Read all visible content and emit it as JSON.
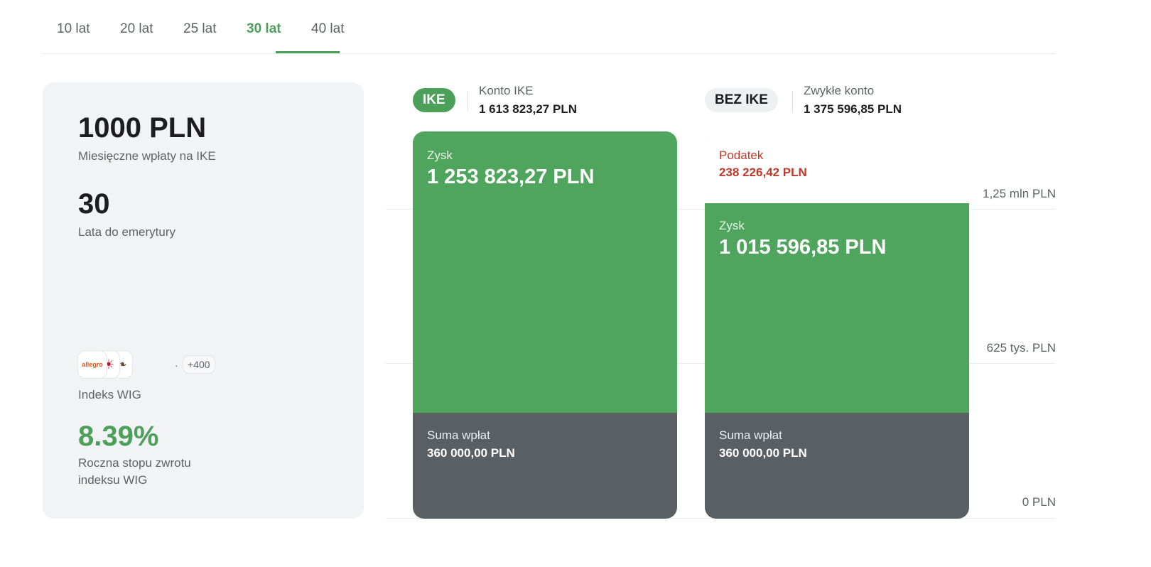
{
  "tabs": [
    {
      "label": "10 lat",
      "active": false
    },
    {
      "label": "20 lat",
      "active": false
    },
    {
      "label": "25 lat",
      "active": false
    },
    {
      "label": "30 lat",
      "active": true
    },
    {
      "label": "40 lat",
      "active": false
    }
  ],
  "summary": {
    "monthly_value": "1000 PLN",
    "monthly_label": "Miesięczne wpłaty na IKE",
    "years_value": "30",
    "years_label": "Lata do emerytury",
    "logos": [
      "allegro",
      "logo-2",
      "logo-3"
    ],
    "logos_more": "+400",
    "index_label": "Indeks WIG",
    "rate_value": "8.39%",
    "rate_label_line1": "Roczna stopu zwrotu",
    "rate_label_line2": "indeksu WIG"
  },
  "chart": {
    "axis_labels": {
      "top": "1,25 mln PLN",
      "mid": "625 tys. PLN",
      "bottom": "0 PLN"
    },
    "ike": {
      "pill": "IKE",
      "name": "Konto IKE",
      "total": "1 613 823,27 PLN",
      "profit_label": "Zysk",
      "profit_value": "1 253 823,27 PLN",
      "deposits_label": "Suma wpłat",
      "deposits_value": "360 000,00 PLN"
    },
    "no_ike": {
      "pill": "BEZ IKE",
      "name": "Zwykłe konto",
      "total": "1 375 596,85 PLN",
      "tax_label": "Podatek",
      "tax_value": "238 226,42 PLN",
      "profit_label": "Zysk",
      "profit_value": "1 015 596,85 PLN",
      "deposits_label": "Suma wpłat",
      "deposits_value": "360 000,00 PLN"
    }
  },
  "colors": {
    "accent_green": "#4da05a",
    "bar_green": "#4fa55d",
    "deposits_grey": "#5a5f64",
    "tax_red": "#c0392b"
  }
}
